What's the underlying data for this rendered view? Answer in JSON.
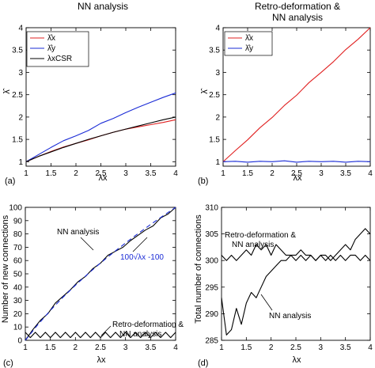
{
  "chart_data": [
    {
      "id": "a",
      "type": "line",
      "panel_letter": "(a)",
      "title": "NN analysis",
      "xlabel": "λx",
      "ylabel": "λ̂",
      "xlim": [
        1,
        4
      ],
      "ylim": [
        0.9,
        4
      ],
      "xticks": [
        "1",
        "1.5",
        "2",
        "2.5",
        "3",
        "3.5",
        "4"
      ],
      "yticks": [
        "1",
        "1.5",
        "2",
        "2.5",
        "3",
        "3.5",
        "4"
      ],
      "legend_position": "top-left",
      "legend": [
        "λ̂x",
        "λ̂y",
        "λxCSR"
      ],
      "series": [
        {
          "name": "λ̂x",
          "color": "#e02020",
          "x": [
            1,
            1.25,
            1.5,
            1.75,
            2,
            2.25,
            2.5,
            2.75,
            3,
            3.25,
            3.5,
            3.75,
            4
          ],
          "y": [
            1.0,
            1.12,
            1.23,
            1.33,
            1.41,
            1.49,
            1.58,
            1.66,
            1.73,
            1.78,
            1.83,
            1.88,
            1.94
          ]
        },
        {
          "name": "λ̂y",
          "color": "#1a2bd6",
          "x": [
            1,
            1.25,
            1.5,
            1.75,
            2,
            2.25,
            2.5,
            2.75,
            3,
            3.25,
            3.5,
            3.75,
            4
          ],
          "y": [
            1.0,
            1.16,
            1.32,
            1.47,
            1.58,
            1.7,
            1.86,
            1.97,
            2.1,
            2.22,
            2.33,
            2.44,
            2.54
          ]
        },
        {
          "name": "λxCSR",
          "color": "#000000",
          "x": [
            1,
            1.25,
            1.5,
            1.75,
            2,
            2.25,
            2.5,
            2.75,
            3,
            3.25,
            3.5,
            3.75,
            4
          ],
          "y": [
            1.0,
            1.12,
            1.22,
            1.32,
            1.41,
            1.5,
            1.58,
            1.66,
            1.73,
            1.8,
            1.87,
            1.94,
            2.0
          ]
        }
      ]
    },
    {
      "id": "b",
      "type": "line",
      "panel_letter": "(b)",
      "title_lines": [
        "Retro-deformation &",
        "NN analysis"
      ],
      "xlabel": "λx",
      "ylabel": "λ̂",
      "xlim": [
        1,
        4
      ],
      "ylim": [
        0.9,
        4
      ],
      "xticks": [
        "1",
        "1.5",
        "2",
        "2.5",
        "3",
        "3.5",
        "4"
      ],
      "yticks": [
        "1",
        "1.5",
        "2",
        "2.5",
        "3",
        "3.5",
        "4"
      ],
      "legend_position": "top-left",
      "legend": [
        "λ̂x",
        "λ̂y"
      ],
      "series": [
        {
          "name": "λ̂x",
          "color": "#e02020",
          "x": [
            1,
            1.25,
            1.5,
            1.75,
            2,
            2.25,
            2.5,
            2.75,
            3,
            3.25,
            3.5,
            3.75,
            4
          ],
          "y": [
            1.0,
            1.25,
            1.49,
            1.76,
            1.99,
            2.26,
            2.49,
            2.77,
            3.0,
            3.24,
            3.51,
            3.74,
            4.0
          ]
        },
        {
          "name": "λ̂y",
          "color": "#1a2bd6",
          "x": [
            1,
            1.25,
            1.5,
            1.75,
            2,
            2.25,
            2.5,
            2.75,
            3,
            3.25,
            3.5,
            3.75,
            4
          ],
          "y": [
            1.0,
            1.01,
            0.99,
            1.01,
            1.0,
            1.02,
            0.99,
            1.01,
            1.0,
            1.01,
            0.99,
            1.01,
            1.0
          ]
        }
      ]
    },
    {
      "id": "c",
      "type": "line",
      "panel_letter": "(c)",
      "xlabel": "λx",
      "ylabel": "Number of new connections",
      "xlim": [
        1,
        4
      ],
      "ylim": [
        0,
        100
      ],
      "xticks": [
        "1",
        "1.5",
        "2",
        "2.5",
        "3",
        "3.5",
        "4"
      ],
      "yticks": [
        "0",
        "10",
        "20",
        "30",
        "40",
        "50",
        "60",
        "70",
        "80",
        "90",
        "100"
      ],
      "annotations": [
        "NN analysis",
        "100√λx -100",
        "Retro-deformation &",
        "NN analysis"
      ],
      "series": [
        {
          "name": "NN analysis",
          "color": "#000000",
          "x": [
            1,
            1.15,
            1.3,
            1.45,
            1.6,
            1.75,
            1.9,
            2.05,
            2.2,
            2.35,
            2.5,
            2.65,
            2.8,
            2.95,
            3.1,
            3.25,
            3.4,
            3.55,
            3.7,
            3.85,
            4
          ],
          "y": [
            0,
            8,
            15,
            20,
            28,
            33,
            38,
            44,
            48,
            54,
            58,
            64,
            67,
            70,
            75,
            79,
            83,
            86,
            92,
            95,
            100
          ]
        },
        {
          "name": "100√λx -100",
          "color": "#1a2bd6",
          "dashed": true,
          "x": [
            1,
            1.25,
            1.5,
            1.75,
            2,
            2.25,
            2.5,
            2.75,
            3,
            3.25,
            3.5,
            3.75,
            4
          ],
          "y": [
            0,
            11.8,
            22.5,
            32.3,
            41.4,
            50.0,
            58.1,
            65.8,
            73.2,
            80.3,
            87.1,
            93.6,
            100
          ]
        },
        {
          "name": "Retro-deformation & NN analysis",
          "color": "#000000",
          "x": [
            1,
            1.1,
            1.2,
            1.3,
            1.4,
            1.5,
            1.6,
            1.7,
            1.8,
            1.9,
            2,
            2.1,
            2.2,
            2.3,
            2.4,
            2.5,
            2.6,
            2.7,
            2.8,
            2.9,
            3,
            3.1,
            3.2,
            3.3,
            3.4,
            3.5,
            3.6,
            3.7,
            3.8,
            3.9,
            4
          ],
          "y": [
            6,
            2,
            6,
            2,
            6,
            2,
            6,
            2,
            6,
            2,
            6,
            2,
            6,
            2,
            6,
            2,
            6,
            2,
            6,
            2,
            6,
            2,
            6,
            2,
            6,
            2,
            6,
            2,
            6,
            2,
            6
          ]
        }
      ]
    },
    {
      "id": "d",
      "type": "line",
      "panel_letter": "(d)",
      "xlabel": "λx",
      "ylabel": "Total number of connections",
      "xlim": [
        1,
        4
      ],
      "ylim": [
        285,
        310
      ],
      "xticks": [
        "1",
        "1.5",
        "2",
        "2.5",
        "3",
        "3.5",
        "4"
      ],
      "yticks": [
        "285",
        "290",
        "295",
        "300",
        "305",
        "310"
      ],
      "annotations": [
        "Retro-deformation &",
        "NN analysis",
        "NN analysis"
      ],
      "series": [
        {
          "name": "Retro-deformation & NN analysis",
          "color": "#000000",
          "x": [
            1,
            1.1,
            1.2,
            1.3,
            1.4,
            1.5,
            1.6,
            1.7,
            1.8,
            1.9,
            2,
            2.1,
            2.2,
            2.3,
            2.4,
            2.5,
            2.6,
            2.7,
            2.8,
            2.9,
            3,
            3.1,
            3.2,
            3.3,
            3.4,
            3.5,
            3.6,
            3.7,
            3.8,
            3.9,
            4
          ],
          "y": [
            301,
            300,
            301,
            300,
            301,
            302,
            301,
            303,
            302,
            303,
            301,
            303,
            302,
            301,
            301,
            301,
            302,
            301,
            301,
            300,
            301,
            300,
            301,
            300,
            301,
            300,
            301,
            301,
            300,
            301,
            300
          ]
        },
        {
          "name": "NN analysis",
          "color": "#000000",
          "x": [
            1,
            1.1,
            1.2,
            1.3,
            1.4,
            1.5,
            1.6,
            1.7,
            1.8,
            1.9,
            2,
            2.1,
            2.2,
            2.3,
            2.4,
            2.5,
            2.6,
            2.7,
            2.8,
            2.9,
            3,
            3.1,
            3.2,
            3.3,
            3.4,
            3.5,
            3.6,
            3.7,
            3.8,
            3.9,
            4
          ],
          "y": [
            293,
            286,
            287,
            291,
            288,
            292,
            294,
            293,
            295,
            297,
            298,
            299,
            300,
            300,
            301,
            300,
            301,
            300,
            301,
            300,
            301,
            301,
            300,
            301,
            302,
            303,
            302,
            304,
            305,
            306,
            305
          ]
        }
      ]
    }
  ]
}
